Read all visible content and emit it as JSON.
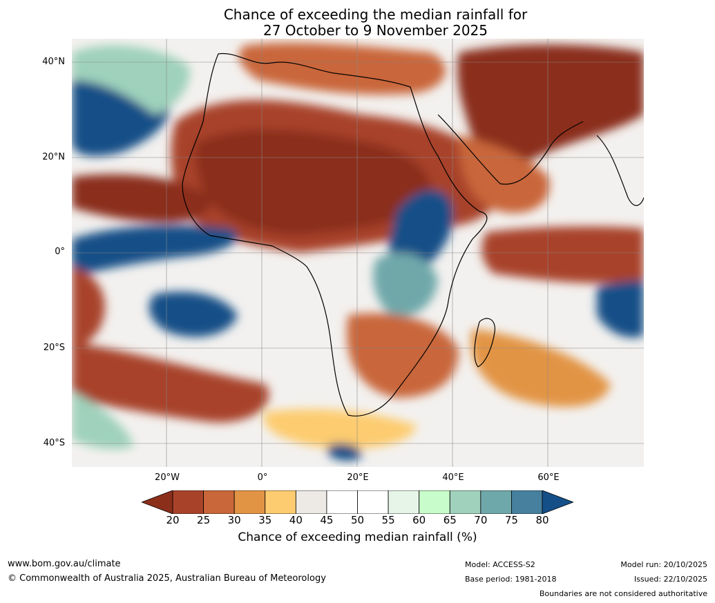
{
  "title": {
    "line1": "Chance of exceeding the median rainfall for",
    "line2": "27 October to 9 November 2025"
  },
  "map": {
    "region": "Africa and surrounding oceans",
    "lat_labels": [
      "40°N",
      "20°N",
      "0°",
      "20°S",
      "40°S"
    ],
    "lon_labels": [
      "20°W",
      "0°",
      "20°E",
      "40°E",
      "60°E"
    ]
  },
  "colorbar": {
    "ticks": [
      "20",
      "25",
      "30",
      "35",
      "40",
      "45",
      "50",
      "55",
      "60",
      "65",
      "70",
      "75",
      "80"
    ],
    "colors": [
      "#8b2e1a",
      "#a8432a",
      "#c9663a",
      "#e29445",
      "#fdcc70",
      "#ede9e4",
      "#ffffff",
      "#ffffff",
      "#e6f5e8",
      "#c8fcca",
      "#9fd1bc",
      "#6fa8aa",
      "#47809f",
      "#154f87"
    ],
    "label": "Chance of exceeding median rainfall (%)"
  },
  "footer": {
    "website": "www.bom.gov.au/climate",
    "copyright": "© Commonwealth of Australia 2025, Australian Bureau of Meteorology",
    "model": "Model: ACCESS-S2",
    "base_period": "Base period: 1981-2018",
    "model_run": "Model run: 20/10/2025",
    "issued": "Issued: 22/10/2025",
    "disclaimer": "Boundaries are not considered authoritative"
  }
}
